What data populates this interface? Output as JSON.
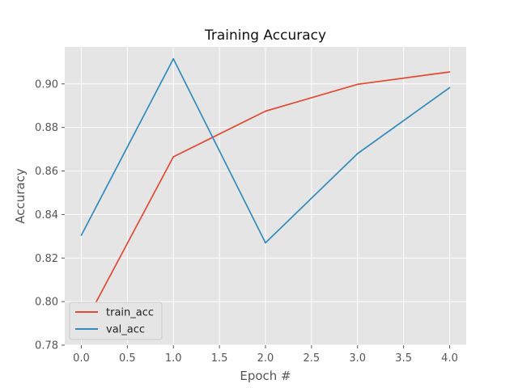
{
  "chart_data": {
    "type": "line",
    "title": "Training Accuracy",
    "xlabel": "Epoch #",
    "ylabel": "Accuracy",
    "x": [
      0,
      1,
      2,
      3,
      4
    ],
    "xlim": [
      -0.18,
      4.18
    ],
    "ylim": [
      0.78,
      0.917
    ],
    "xticks": [
      0.0,
      0.5,
      1.0,
      1.5,
      2.0,
      2.5,
      3.0,
      3.5,
      4.0
    ],
    "xtick_labels": [
      "0.0",
      "0.5",
      "1.0",
      "1.5",
      "2.0",
      "2.5",
      "3.0",
      "3.5",
      "4.0"
    ],
    "yticks": [
      0.78,
      0.8,
      0.82,
      0.84,
      0.86,
      0.88,
      0.9
    ],
    "ytick_labels": [
      "0.78",
      "0.80",
      "0.82",
      "0.84",
      "0.86",
      "0.88",
      "0.90"
    ],
    "grid": true,
    "legend_position": "lower-left",
    "background_color": "#e5e5e5",
    "series": [
      {
        "name": "train_acc",
        "color": "#e24a33",
        "values": [
          0.787,
          0.8665,
          0.8875,
          0.8998,
          0.9055
        ]
      },
      {
        "name": "val_acc",
        "color": "#348abd",
        "values": [
          0.8305,
          0.9115,
          0.827,
          0.868,
          0.8983
        ]
      }
    ]
  }
}
